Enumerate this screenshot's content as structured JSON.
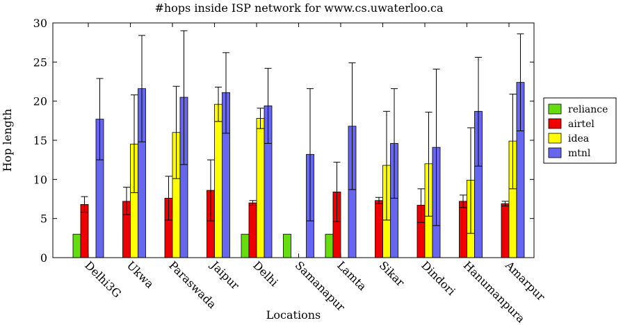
{
  "chart_data": {
    "type": "bar",
    "title": "#hops inside ISP network for www.cs.uwaterloo.ca",
    "xlabel": "Locations",
    "ylabel": "Hop length",
    "ylim": [
      0,
      30
    ],
    "yticks": [
      0,
      5,
      10,
      15,
      20,
      25,
      30
    ],
    "grid": false,
    "legend_position": "right",
    "categories": [
      "Delhi3G",
      "Ukwa",
      "Paraswada",
      "Jaipur",
      "Delhi",
      "Samanapur",
      "Lamta",
      "Sikar",
      "Dindori",
      "Hanumanpura",
      "Amarpur"
    ],
    "series": [
      {
        "name": "reliance",
        "color": "#66dd11",
        "values": [
          3.0,
          null,
          null,
          null,
          3.0,
          3.0,
          3.0,
          null,
          null,
          null,
          null
        ],
        "error_low": [
          3.0,
          null,
          null,
          null,
          3.0,
          3.0,
          3.0,
          null,
          null,
          null,
          null
        ],
        "error_high": [
          3.0,
          null,
          null,
          null,
          3.0,
          3.0,
          3.0,
          null,
          null,
          null,
          null
        ]
      },
      {
        "name": "airtel",
        "color": "#ee0000",
        "values": [
          6.8,
          7.2,
          7.6,
          8.6,
          7.0,
          null,
          8.4,
          7.3,
          6.7,
          7.2,
          6.9
        ],
        "error_low": [
          5.8,
          5.5,
          4.8,
          4.7,
          6.7,
          null,
          4.6,
          6.9,
          4.5,
          6.4,
          6.6
        ],
        "error_high": [
          7.8,
          9.0,
          10.4,
          12.5,
          7.3,
          null,
          12.2,
          7.7,
          8.8,
          8.0,
          7.2
        ]
      },
      {
        "name": "idea",
        "color": "#ffff00",
        "values": [
          null,
          14.5,
          16.0,
          19.6,
          17.8,
          null,
          null,
          11.8,
          12.0,
          9.9,
          14.9
        ],
        "error_low": [
          null,
          8.3,
          10.1,
          17.4,
          16.5,
          null,
          null,
          4.8,
          5.3,
          3.1,
          8.8
        ],
        "error_high": [
          null,
          20.8,
          21.9,
          21.8,
          19.1,
          null,
          null,
          18.7,
          18.6,
          16.6,
          20.9
        ]
      },
      {
        "name": "mtnl",
        "color": "#6666ee",
        "values": [
          17.7,
          21.6,
          20.5,
          21.1,
          19.4,
          13.2,
          16.8,
          14.6,
          14.1,
          18.7,
          22.4
        ],
        "error_low": [
          12.5,
          14.8,
          11.9,
          15.9,
          14.6,
          4.7,
          8.7,
          7.6,
          4.1,
          11.7,
          16.2
        ],
        "error_high": [
          22.9,
          28.4,
          29.0,
          26.2,
          24.2,
          21.6,
          24.9,
          21.6,
          24.1,
          25.6,
          28.6
        ]
      }
    ]
  }
}
